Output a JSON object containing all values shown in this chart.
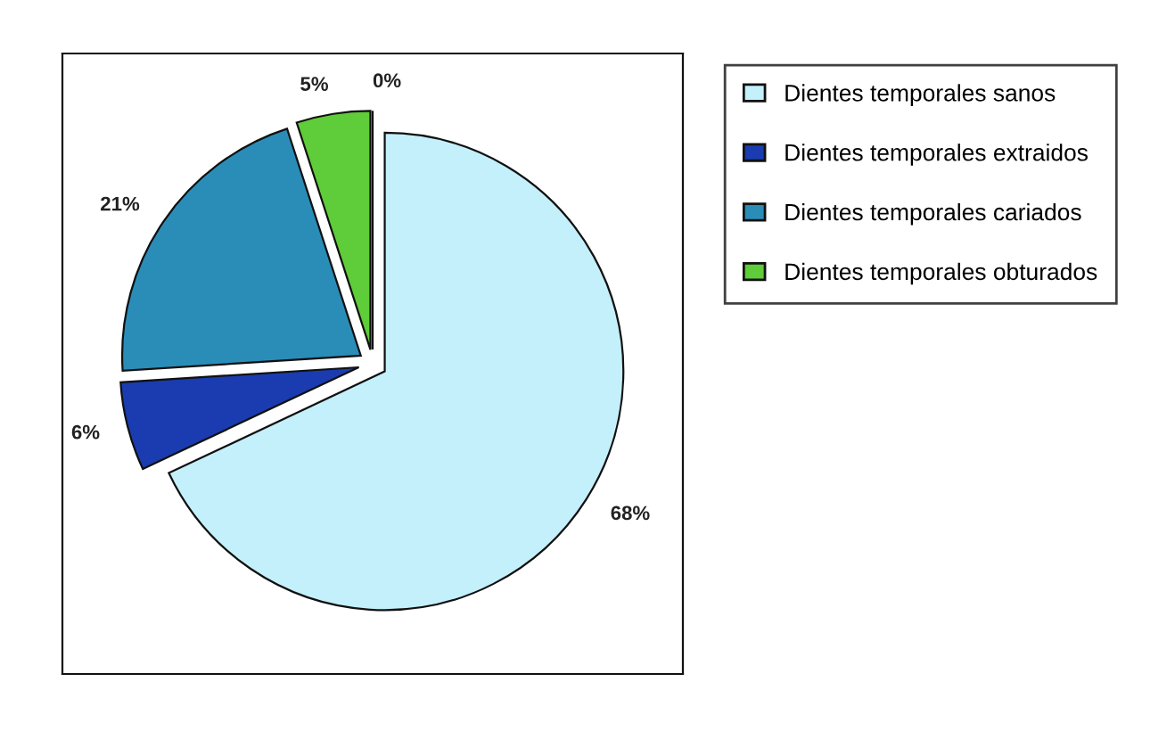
{
  "chart_data": {
    "type": "pie",
    "categories": [
      "Dientes temporales sanos",
      "Dientes temporales extraidos",
      "Dientes temporales cariados",
      "Dientes temporales obturados",
      null
    ],
    "values": [
      68,
      6,
      21,
      5,
      0
    ],
    "value_labels": [
      "68%",
      "6%",
      "21%",
      "5%",
      "0%"
    ],
    "colors": [
      "#c4f0fb",
      "#1a3cb0",
      "#2a8db8",
      "#5fcc3a",
      "#ffffff"
    ],
    "legend": "right"
  }
}
